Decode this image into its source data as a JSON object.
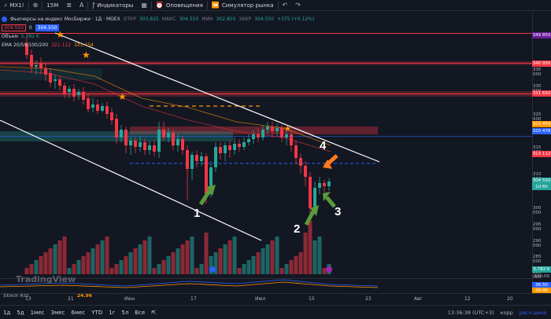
{
  "toolbar": {
    "symbol": "MX1!",
    "interval": "15M",
    "indicators": "Индикаторы",
    "alerts": "Оповещения",
    "simulator": "Симулятор рынка"
  },
  "legend": {
    "title": "Фьючерсы на индекс МосБиржи · 1Д · MOEX",
    "open_label": "ОТКР",
    "open": "303.825",
    "high_label": "МАКС",
    "high": "304.550",
    "low_label": "МИН",
    "low": "302.850",
    "close_label": "ЗАКР",
    "close": "304.550",
    "change": "+375 (+0.12%)",
    "bid": "304.550",
    "spread": "0",
    "ask": "304.550",
    "volume_label": "Объем",
    "volume": "5,782 K",
    "ema_label": "EMA 20/50/100/200",
    "ema1": "321.112",
    "ema2": "321.454"
  },
  "price_scale": {
    "ticks": [
      "335 000",
      "330 000",
      "325 000",
      "315 000",
      "310 000",
      "300 000",
      "295 000",
      "290 000",
      "285 000",
      "280 000"
    ],
    "labels": [
      {
        "text": "349 850",
        "color": "#6a1b9a"
      },
      {
        "text": "340 950",
        "color": "#f23645"
      },
      {
        "text": "331 650",
        "color": "#f23645"
      },
      {
        "text": "321 454",
        "color": "#ff9800"
      },
      {
        "text": "320 478",
        "color": "#2962ff"
      },
      {
        "text": "313 112",
        "color": "#f23645"
      },
      {
        "text": "304 550",
        "color": "#26a69a"
      },
      {
        "text": "1d 6h",
        "color": "#26a69a"
      },
      {
        "text": "5,782 K",
        "color": "#26a69a"
      },
      {
        "text": "36.50",
        "color": "#2962ff"
      },
      {
        "text": "24.96",
        "color": "#ff9800"
      }
    ]
  },
  "rsi": {
    "label": "Stoch RSI",
    "v1": "36.50",
    "v2": "24.96",
    "t100": "100.00"
  },
  "time_scale": [
    "13",
    "21",
    "Июн",
    "17",
    "Июл",
    "15",
    "23",
    "Авг",
    "12",
    "20"
  ],
  "annotations": [
    "1",
    "2",
    "3",
    "4"
  ],
  "watermark": "TradingView",
  "bottombar": {
    "ranges": [
      "1д",
      "5д",
      "1мес",
      "3мес",
      "6мес",
      "YTD",
      "1г",
      "5л",
      "Все"
    ],
    "time": "13:36:38 (UTC+3)",
    "adj": "корр",
    "ext": "расч.цена"
  }
}
